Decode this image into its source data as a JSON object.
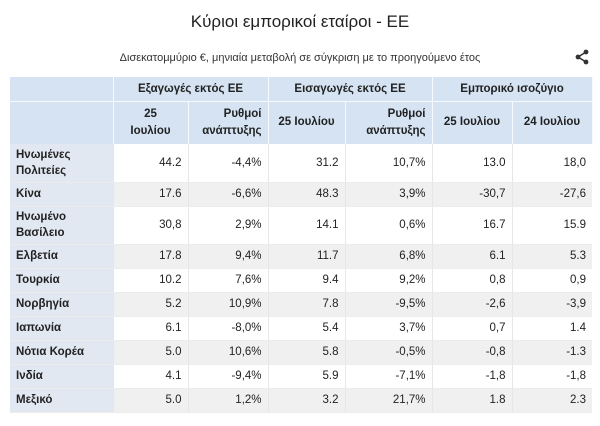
{
  "title": "Κύριοι εμπορικοί εταίροι - ΕΕ",
  "subtitle": "Δισεκατομμύριο €, μηνιαία μεταβολή σε σύγκριση με το προηγούμενο έτος",
  "share_icon": "share-icon",
  "colors": {
    "header_bg": "#d6e3f3",
    "stripe": "#f0f0f0",
    "country_bg": "#e1e8f2"
  },
  "table": {
    "groups": [
      "Εξαγωγές εκτός ΕΕ",
      "Εισαγωγές εκτός ΕΕ",
      "Εμπορικό ισοζύγιο"
    ],
    "subheaders": [
      "25\nΙουλίου",
      "Ρυθμοί\nανάπτυξης",
      "25 Ιουλίου",
      "Ρυθμοί\nανάπτυξης",
      "25 Ιουλίου",
      "24 Ιουλίου"
    ],
    "rows": [
      {
        "country": "Ηνωμένες\nΠολιτείες",
        "values": [
          "44.2",
          "-4,4%",
          "31.2",
          "10,7%",
          "13.0",
          "18,0"
        ]
      },
      {
        "country": "Κίνα",
        "values": [
          "17.6",
          "-6,6%",
          "48.3",
          "3,9%",
          "-30,7",
          "-27,6"
        ]
      },
      {
        "country": "Ηνωμένο\nΒασίλειο",
        "values": [
          "30,8",
          "2,9%",
          "14.1",
          "0,6%",
          "16.7",
          "15.9"
        ]
      },
      {
        "country": "Ελβετία",
        "values": [
          "17.8",
          "9,4%",
          "11.7",
          "6,8%",
          "6.1",
          "5.3"
        ]
      },
      {
        "country": "Τουρκία",
        "values": [
          "10.2",
          "7,6%",
          "9.4",
          "9,2%",
          "0,8",
          "0,9"
        ]
      },
      {
        "country": "Νορβηγία",
        "values": [
          "5.2",
          "10,9%",
          "7.8",
          "-9,5%",
          "-2,6",
          "-3,9"
        ]
      },
      {
        "country": "Ιαπωνία",
        "values": [
          "6.1",
          "-8,0%",
          "5.4",
          "3,7%",
          "0,7",
          "1.4"
        ]
      },
      {
        "country": "Νότια Κορέα",
        "values": [
          "5.0",
          "10,6%",
          "5.8",
          "-0,5%",
          "-0,8",
          "-1.3"
        ]
      },
      {
        "country": "Ινδία",
        "values": [
          "4.1",
          "-9,4%",
          "5.9",
          "-7,1%",
          "-1,8",
          "-1,8"
        ]
      },
      {
        "country": "Μεξικό",
        "values": [
          "5.0",
          "1,2%",
          "3.2",
          "21,7%",
          "1.8",
          "2.3"
        ]
      }
    ]
  }
}
